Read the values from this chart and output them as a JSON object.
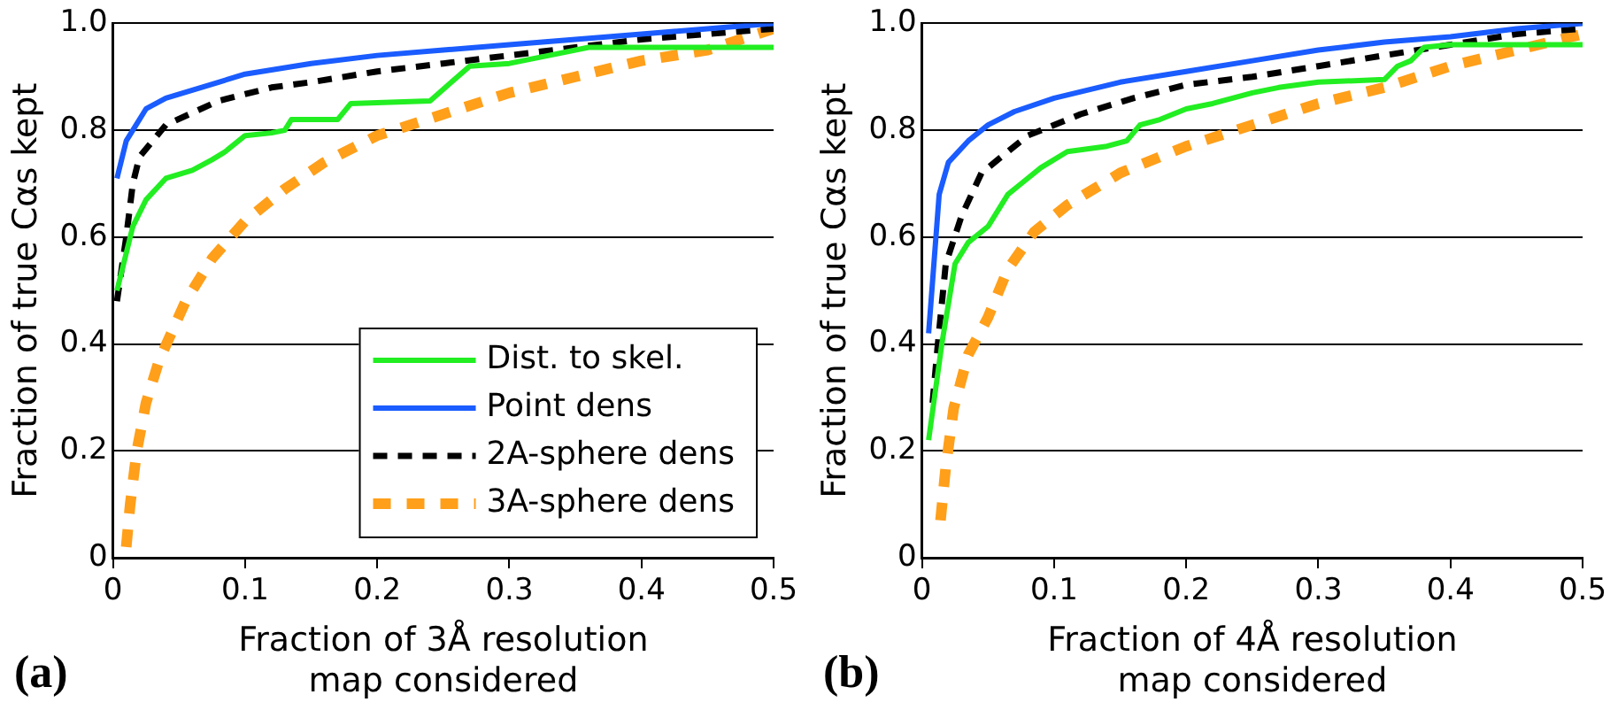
{
  "chart_data": [
    {
      "type": "line",
      "xlabel": "Fraction of 3Å resolution map considered",
      "ylabel": "Fraction of true Cαs kept",
      "annotations": [
        "(a)"
      ],
      "xlim": [
        0,
        0.5
      ],
      "ylim": [
        0,
        1.0
      ],
      "xticks": [
        0,
        0.1,
        0.2,
        0.3,
        0.4,
        0.5
      ],
      "yticks": [
        0,
        0.2,
        0.4,
        0.6,
        0.8,
        {
          "value": 1,
          "label": "1.0"
        }
      ],
      "grid": "y",
      "legend": "bottom right",
      "marker": "none",
      "series": [
        {
          "name": "Dist. to skel.",
          "color": "#22ee22",
          "line_style": "solid",
          "x": [
            0.003,
            0.01,
            0.015,
            0.025,
            0.04,
            0.06,
            0.075,
            0.085,
            0.1,
            0.12,
            0.13,
            0.135,
            0.17,
            0.18,
            0.24,
            0.27,
            0.3,
            0.33,
            0.36,
            0.5
          ],
          "values": [
            0.5,
            0.57,
            0.62,
            0.67,
            0.71,
            0.725,
            0.745,
            0.76,
            0.79,
            0.795,
            0.8,
            0.82,
            0.82,
            0.85,
            0.855,
            0.92,
            0.925,
            0.94,
            0.955,
            0.955
          ]
        },
        {
          "name": "Point dens",
          "color": "#1a5cff",
          "line_style": "solid",
          "x": [
            0.003,
            0.01,
            0.015,
            0.025,
            0.04,
            0.06,
            0.08,
            0.1,
            0.15,
            0.2,
            0.25,
            0.3,
            0.35,
            0.4,
            0.45,
            0.5
          ],
          "values": [
            0.71,
            0.78,
            0.8,
            0.84,
            0.86,
            0.875,
            0.89,
            0.905,
            0.925,
            0.94,
            0.95,
            0.96,
            0.97,
            0.98,
            0.99,
            1.0
          ]
        },
        {
          "name": "2A-sphere dens",
          "color": "#000000",
          "line_style": "dashed",
          "x": [
            0.003,
            0.01,
            0.015,
            0.02,
            0.04,
            0.08,
            0.12,
            0.15,
            0.2,
            0.25,
            0.3,
            0.35,
            0.4,
            0.45,
            0.5
          ],
          "values": [
            0.48,
            0.6,
            0.7,
            0.75,
            0.81,
            0.855,
            0.88,
            0.89,
            0.91,
            0.925,
            0.94,
            0.955,
            0.97,
            0.98,
            0.99
          ]
        },
        {
          "name": "3A-sphere dens",
          "color": "#ff9f1a",
          "line_style": "dashed",
          "x": [
            0.01,
            0.013,
            0.018,
            0.025,
            0.035,
            0.055,
            0.075,
            0.1,
            0.13,
            0.16,
            0.2,
            0.25,
            0.3,
            0.35,
            0.4,
            0.45,
            0.5
          ],
          "values": [
            0.02,
            0.1,
            0.2,
            0.29,
            0.37,
            0.48,
            0.56,
            0.63,
            0.69,
            0.74,
            0.79,
            0.83,
            0.87,
            0.9,
            0.93,
            0.95,
            0.99
          ]
        }
      ]
    },
    {
      "type": "line",
      "xlabel": "Fraction of 4Å resolution map considered",
      "ylabel": "Fraction of true Cαs kept",
      "annotations": [
        "(b)"
      ],
      "xlim": [
        0,
        0.5
      ],
      "ylim": [
        0,
        1.0
      ],
      "xticks": [
        0,
        0.1,
        0.2,
        0.3,
        0.4,
        0.5
      ],
      "yticks": [
        0,
        0.2,
        0.4,
        0.6,
        0.8,
        {
          "value": 1,
          "label": "1.0"
        }
      ],
      "grid": "y",
      "marker": "none",
      "series": [
        {
          "color": "#22ee22",
          "line_style": "solid",
          "x": [
            0.005,
            0.015,
            0.025,
            0.035,
            0.05,
            0.065,
            0.075,
            0.09,
            0.11,
            0.14,
            0.155,
            0.165,
            0.18,
            0.2,
            0.22,
            0.25,
            0.27,
            0.3,
            0.35,
            0.36,
            0.37,
            0.38,
            0.4,
            0.5
          ],
          "values": [
            0.22,
            0.4,
            0.55,
            0.59,
            0.62,
            0.68,
            0.7,
            0.73,
            0.76,
            0.77,
            0.78,
            0.81,
            0.82,
            0.84,
            0.85,
            0.87,
            0.88,
            0.89,
            0.895,
            0.92,
            0.93,
            0.955,
            0.96,
            0.96
          ]
        },
        {
          "color": "#1a5cff",
          "line_style": "solid",
          "x": [
            0.005,
            0.013,
            0.02,
            0.035,
            0.05,
            0.07,
            0.1,
            0.15,
            0.2,
            0.25,
            0.3,
            0.35,
            0.4,
            0.45,
            0.5
          ],
          "values": [
            0.42,
            0.68,
            0.74,
            0.78,
            0.81,
            0.835,
            0.86,
            0.89,
            0.91,
            0.93,
            0.95,
            0.965,
            0.975,
            0.99,
            1.0
          ]
        },
        {
          "color": "#000000",
          "line_style": "dashed",
          "x": [
            0.008,
            0.012,
            0.018,
            0.03,
            0.045,
            0.08,
            0.12,
            0.16,
            0.2,
            0.25,
            0.3,
            0.35,
            0.4,
            0.45,
            0.5
          ],
          "values": [
            0.29,
            0.4,
            0.55,
            0.64,
            0.72,
            0.79,
            0.83,
            0.86,
            0.885,
            0.9,
            0.92,
            0.94,
            0.96,
            0.98,
            0.99
          ]
        },
        {
          "color": "#ff9f1a",
          "line_style": "dashed",
          "x": [
            0.014,
            0.018,
            0.024,
            0.035,
            0.05,
            0.065,
            0.085,
            0.11,
            0.15,
            0.2,
            0.25,
            0.3,
            0.35,
            0.4,
            0.45,
            0.5
          ],
          "values": [
            0.07,
            0.17,
            0.28,
            0.38,
            0.45,
            0.54,
            0.61,
            0.66,
            0.72,
            0.77,
            0.81,
            0.85,
            0.88,
            0.92,
            0.95,
            0.98
          ]
        }
      ]
    }
  ]
}
